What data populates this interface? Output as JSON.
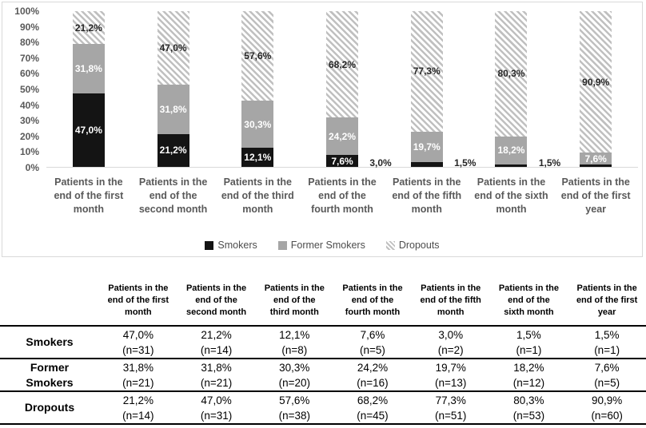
{
  "chart_data": {
    "type": "bar",
    "stacked": true,
    "percent_of_total": true,
    "title": "",
    "xlabel": "",
    "ylabel": "",
    "ylim": [
      0,
      100
    ],
    "grid": false,
    "legend_position": "bottom",
    "y_ticks": [
      "100%",
      "90%",
      "80%",
      "70%",
      "60%",
      "50%",
      "40%",
      "30%",
      "20%",
      "10%",
      "0%"
    ],
    "categories": [
      "Patients in the end of the first month",
      "Patients in the end of the second month",
      "Patients in the end of the third month",
      "Patients in the end of the fourth month",
      "Patients in the end of the fifth month",
      "Patients in the end of the sixth month",
      "Patients in the end of the first year"
    ],
    "category_display": [
      "Patients in the\nend of the first\nmonth",
      "Patients in the\nend of the\nsecond month",
      "Patients in the\nend of the third\nmonth",
      "Patients in the\nend of the\nfourth month",
      "Patients in the\nend of the fifth\nmonth",
      "Patients in the\nend of the sixth\nmonth",
      "Patients in the\nend of the first\nyear"
    ],
    "series": [
      {
        "name": "Smokers",
        "style": "solid-black",
        "values": [
          47.0,
          21.2,
          12.1,
          7.6,
          3.0,
          1.5,
          1.5
        ],
        "labels": [
          "47,0%",
          "21,2%",
          "12,1%",
          "7,6%",
          "3,0%",
          "1,5%",
          "1,5%"
        ],
        "counts": [
          31,
          14,
          8,
          5,
          2,
          1,
          1
        ],
        "label_outside": [
          false,
          false,
          false,
          false,
          true,
          true,
          true
        ]
      },
      {
        "name": "Former Smokers",
        "style": "solid-gray",
        "values": [
          31.8,
          31.8,
          30.3,
          24.2,
          19.7,
          18.2,
          7.6
        ],
        "labels": [
          "31,8%",
          "31,8%",
          "30,3%",
          "24,2%",
          "19,7%",
          "18,2%",
          "7,6%"
        ],
        "counts": [
          21,
          21,
          20,
          16,
          13,
          12,
          5
        ],
        "label_outside": [
          false,
          false,
          false,
          false,
          false,
          false,
          false
        ]
      },
      {
        "name": "Dropouts",
        "style": "hatch",
        "values": [
          21.2,
          47.0,
          57.6,
          68.2,
          77.3,
          80.3,
          90.9
        ],
        "labels": [
          "21,2%",
          "47,0%",
          "57,6%",
          "68,2%",
          "77,3%",
          "80,3%",
          "90,9%"
        ],
        "counts": [
          14,
          31,
          38,
          45,
          51,
          53,
          60
        ],
        "label_outside": [
          false,
          false,
          false,
          false,
          false,
          false,
          false
        ]
      }
    ]
  },
  "legend": {
    "items": [
      "Smokers",
      "Former Smokers",
      "Dropouts"
    ]
  },
  "table": {
    "corner_label": "",
    "column_headers_display": [
      "Patients in the\nend of the first\nmonth",
      "Patients in the\nend of the\nsecond month",
      "Patients in the\nend of the\nthird month",
      "Patients in the\nend of the\nfourth month",
      "Patients in the\nend of the fifth\nmonth",
      "Patients in the\nend of the\nsixth month",
      "Patients in the\nend of the first\nyear"
    ],
    "rows": [
      {
        "label": "Smokers",
        "label_display": "Smokers",
        "cells": [
          [
            "47,0%",
            "(n=31)"
          ],
          [
            "21,2%",
            "(n=14)"
          ],
          [
            "12,1%",
            "(n=8)"
          ],
          [
            "7,6%",
            "(n=5)"
          ],
          [
            "3,0%",
            "(n=2)"
          ],
          [
            "1,5%",
            "(n=1)"
          ],
          [
            "1,5%",
            "(n=1)"
          ]
        ]
      },
      {
        "label": "Former Smokers",
        "label_display": "Former\nSmokers",
        "cells": [
          [
            "31,8%",
            "(n=21)"
          ],
          [
            "31,8%",
            "(n=21)"
          ],
          [
            "30,3%",
            "(n=20)"
          ],
          [
            "24,2%",
            "(n=16)"
          ],
          [
            "19,7%",
            "(n=13)"
          ],
          [
            "18,2%",
            "(n=12)"
          ],
          [
            "7,6%",
            "(n=5)"
          ]
        ]
      },
      {
        "label": "Dropouts",
        "label_display": "Dropouts",
        "cells": [
          [
            "21,2%",
            "(n=14)"
          ],
          [
            "47,0%",
            "(n=31)"
          ],
          [
            "57,6%",
            "(n=38)"
          ],
          [
            "68,2%",
            "(n=45)"
          ],
          [
            "77,3%",
            "(n=51)"
          ],
          [
            "80,3%",
            "(n=53)"
          ],
          [
            "90,9%",
            "(n=60)"
          ]
        ]
      }
    ]
  },
  "colors": {
    "smokers": "#141414",
    "former_smokers": "#a6a6a6",
    "dropouts_hatch_stripe": "#c0c0c0",
    "axis_text": "#595959",
    "chart_border": "#d9d9d9",
    "table_rule": "#000000"
  }
}
